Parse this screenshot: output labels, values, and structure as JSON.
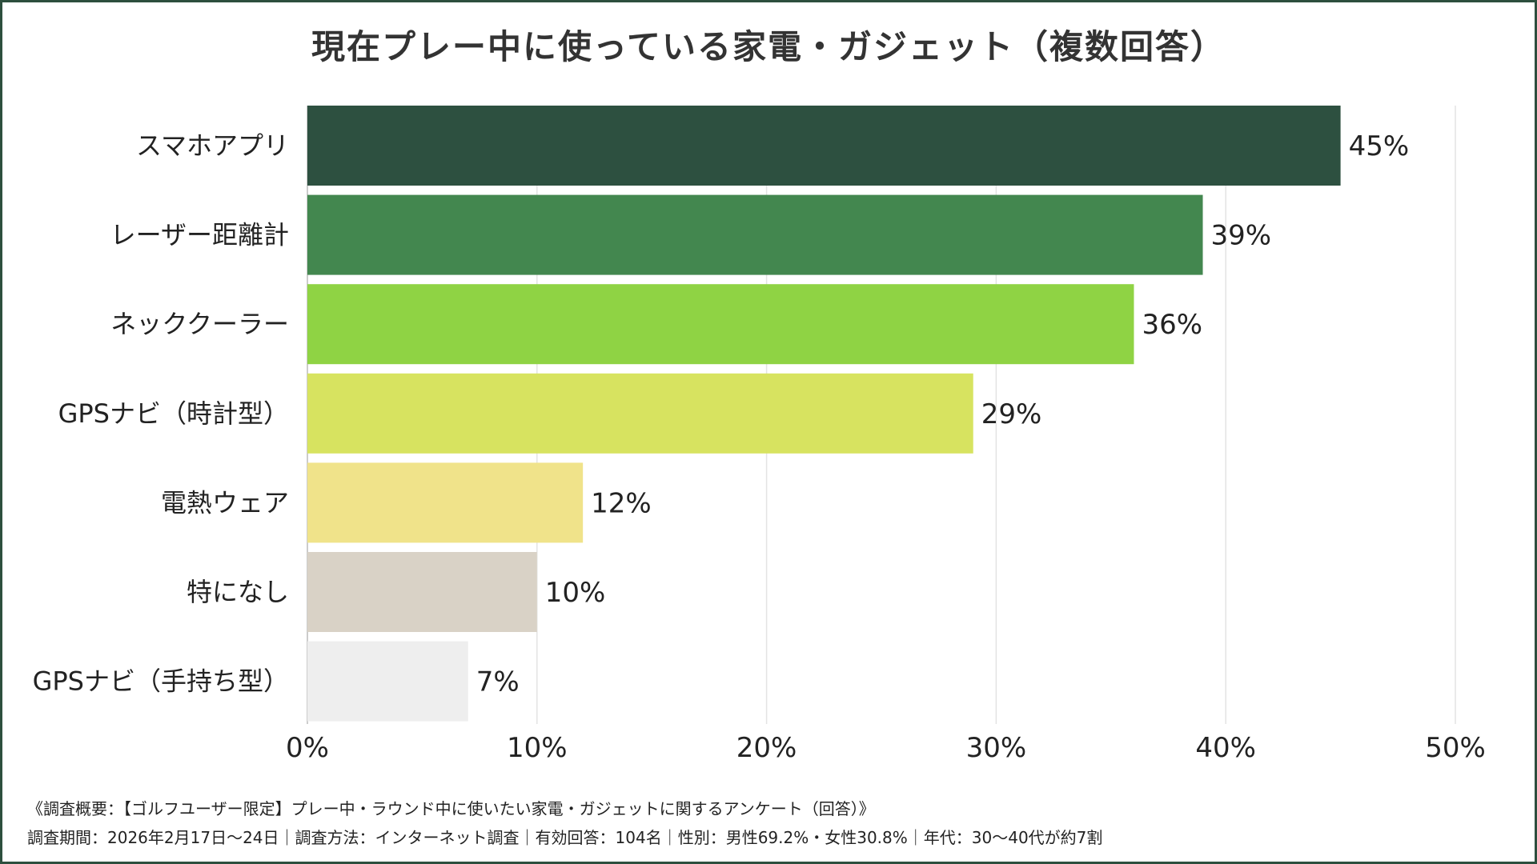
{
  "chart_data": {
    "type": "bar",
    "orientation": "horizontal",
    "title": "現在プレー中に使っている家電・ガジェット（複数回答）",
    "categories": [
      "スマホアプリ",
      "レーザー距離計",
      "ネッククーラー",
      "GPSナビ（時計型）",
      "電熱ウェア",
      "特になし",
      "GPSナビ（手持ち型）"
    ],
    "values": [
      45,
      39,
      36,
      29,
      12,
      10,
      7
    ],
    "data_labels": [
      "45%",
      "39%",
      "36%",
      "29%",
      "12%",
      "10%",
      "7%"
    ],
    "colors": [
      "#2d5040",
      "#43874f",
      "#8fd344",
      "#d7e360",
      "#f0e38a",
      "#d9d2c6",
      "#eeeeee"
    ],
    "xlim": [
      0,
      50
    ],
    "xticks": [
      "0%",
      "10%",
      "20%",
      "30%",
      "40%",
      "50%"
    ],
    "grid": true,
    "legend": "none"
  },
  "footnote": {
    "line1": "《調査概要：【ゴルフユーザー限定】プレー中・ラウンド中に使いたい家電・ガジェットに関するアンケート（回答）》",
    "line2": "調査期間：2026年2月17日〜24日｜調査方法：インターネット調査｜有効回答：104名｜性別：男性69.2%・女性30.8%｜年代：30〜40代が約7割"
  }
}
